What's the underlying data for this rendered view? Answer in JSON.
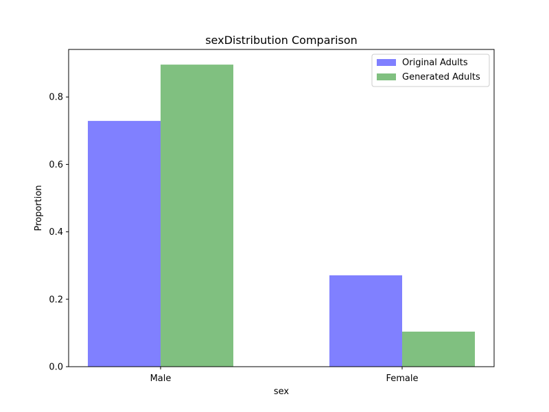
{
  "chart_data": {
    "type": "bar",
    "title": "sexDistribution Comparison",
    "xlabel": "sex",
    "ylabel": "Proportion",
    "categories": [
      "Male",
      "Female"
    ],
    "series": [
      {
        "name": "Original Adults",
        "values": [
          0.729,
          0.271
        ],
        "color": "#8080ff"
      },
      {
        "name": "Generated Adults",
        "values": [
          0.896,
          0.104
        ],
        "color": "#80c080"
      }
    ],
    "ylim": [
      0,
      0.941
    ],
    "yticks": [
      0.0,
      0.2,
      0.4,
      0.6,
      0.8
    ],
    "ytick_labels": [
      "0.0",
      "0.2",
      "0.4",
      "0.6",
      "0.8"
    ],
    "grid": false,
    "legend_position": "top-right"
  }
}
